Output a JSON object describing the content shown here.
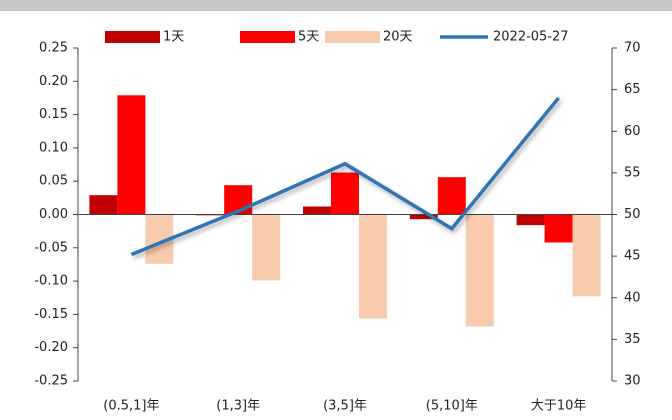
{
  "chart_data": {
    "type": "bar_line",
    "categories": [
      "(0.5,1]年",
      "(1,3]年",
      "(3,5]年",
      "(5,10]年",
      "大于10年"
    ],
    "series": [
      {
        "name": "1天",
        "color": "#c00000",
        "values": [
          0.029,
          -0.001,
          0.012,
          -0.007,
          -0.016
        ]
      },
      {
        "name": "5天",
        "color": "#ff0000",
        "values": [
          0.179,
          0.044,
          0.063,
          0.056,
          -0.042
        ]
      },
      {
        "name": "20天",
        "color": "#f8cbad",
        "values": [
          -0.074,
          -0.099,
          -0.156,
          -0.168,
          -0.123
        ]
      },
      {
        "name": "2022-05-27",
        "color": "#2e75b6",
        "axis": "y2",
        "type": "line",
        "values": [
          45.2,
          50.4,
          56.1,
          48.3,
          64.0
        ]
      }
    ],
    "ylim": [
      -0.25,
      0.25
    ],
    "yticks": [
      {
        "value": -0.25,
        "label": "-0.25"
      },
      {
        "value": -0.2,
        "label": "-0.20"
      },
      {
        "value": -0.15,
        "label": "-0.15"
      },
      {
        "value": -0.1,
        "label": "-0.10"
      },
      {
        "value": -0.05,
        "label": "-0.05"
      },
      {
        "value": 0,
        "label": "0.00"
      },
      {
        "value": 0.05,
        "label": "0.05"
      },
      {
        "value": 0.1,
        "label": "0.10"
      },
      {
        "value": 0.15,
        "label": "0.15"
      },
      {
        "value": 0.2,
        "label": "0.20"
      },
      {
        "value": 0.25,
        "label": "0.25"
      }
    ],
    "y2lim": [
      30,
      70
    ],
    "y2ticks": [
      30,
      35,
      40,
      45,
      50,
      55,
      60,
      65,
      70
    ]
  }
}
